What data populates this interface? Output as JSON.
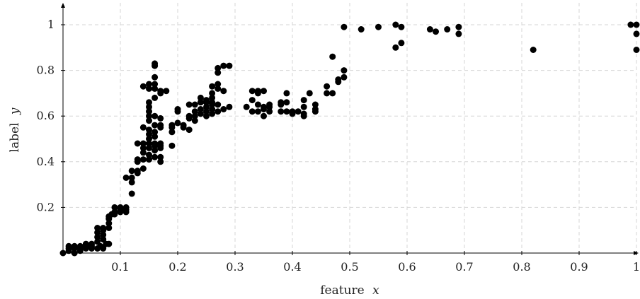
{
  "chart_data": {
    "type": "scatter",
    "title": "",
    "xlabel": "feature",
    "xlabel_var": "x",
    "ylabel": "label",
    "ylabel_var": "y",
    "xlim": [
      0,
      1
    ],
    "ylim": [
      0,
      1.08
    ],
    "grid": true,
    "xticks": [
      0.1,
      0.2,
      0.3,
      0.4,
      0.5,
      0.6,
      0.7,
      0.8,
      0.9,
      1
    ],
    "xtick_labels": [
      "0.1",
      "0.2",
      "0.3",
      "0.4",
      "0.5",
      "0.6",
      "0.7",
      "0.8",
      "0.9",
      "1"
    ],
    "yticks": [
      0.2,
      0.4,
      0.6,
      0.8,
      1
    ],
    "ytick_labels": [
      "0.2",
      "0.4",
      "0.6",
      "0.8",
      "1"
    ],
    "series": [
      {
        "marker_color": "#000000",
        "points": [
          [
            0,
            0
          ],
          [
            0.01,
            0.01
          ],
          [
            0.01,
            0.02
          ],
          [
            0.01,
            0.03
          ],
          [
            0.02,
            0.0
          ],
          [
            0.02,
            0.02
          ],
          [
            0.02,
            0.03
          ],
          [
            0.03,
            0.01
          ],
          [
            0.03,
            0.02
          ],
          [
            0.03,
            0.03
          ],
          [
            0.04,
            0.02
          ],
          [
            0.04,
            0.03
          ],
          [
            0.04,
            0.04
          ],
          [
            0.05,
            0.02
          ],
          [
            0.05,
            0.03
          ],
          [
            0.05,
            0.04
          ],
          [
            0.06,
            0.02
          ],
          [
            0.06,
            0.05
          ],
          [
            0.06,
            0.07
          ],
          [
            0.06,
            0.09
          ],
          [
            0.06,
            0.11
          ],
          [
            0.065,
            0.03
          ],
          [
            0.07,
            0.02
          ],
          [
            0.07,
            0.06
          ],
          [
            0.07,
            0.08
          ],
          [
            0.07,
            0.1
          ],
          [
            0.07,
            0.11
          ],
          [
            0.075,
            0.04
          ],
          [
            0.08,
            0.04
          ],
          [
            0.08,
            0.11
          ],
          [
            0.08,
            0.13
          ],
          [
            0.08,
            0.15
          ],
          [
            0.08,
            0.16
          ],
          [
            0.085,
            0.17
          ],
          [
            0.09,
            0.17
          ],
          [
            0.09,
            0.18
          ],
          [
            0.09,
            0.2
          ],
          [
            0.1,
            0.18
          ],
          [
            0.1,
            0.19
          ],
          [
            0.1,
            0.2
          ],
          [
            0.11,
            0.18
          ],
          [
            0.11,
            0.19
          ],
          [
            0.11,
            0.2
          ],
          [
            0.11,
            0.33
          ],
          [
            0.12,
            0.26
          ],
          [
            0.12,
            0.31
          ],
          [
            0.12,
            0.33
          ],
          [
            0.12,
            0.36
          ],
          [
            0.13,
            0.35
          ],
          [
            0.13,
            0.36
          ],
          [
            0.13,
            0.4
          ],
          [
            0.13,
            0.41
          ],
          [
            0.13,
            0.48
          ],
          [
            0.14,
            0.37
          ],
          [
            0.14,
            0.41
          ],
          [
            0.14,
            0.44
          ],
          [
            0.14,
            0.46
          ],
          [
            0.14,
            0.48
          ],
          [
            0.14,
            0.55
          ],
          [
            0.14,
            0.73
          ],
          [
            0.15,
            0.41
          ],
          [
            0.15,
            0.43
          ],
          [
            0.15,
            0.46
          ],
          [
            0.15,
            0.48
          ],
          [
            0.15,
            0.5
          ],
          [
            0.15,
            0.52
          ],
          [
            0.15,
            0.54
          ],
          [
            0.15,
            0.58
          ],
          [
            0.15,
            0.6
          ],
          [
            0.15,
            0.62
          ],
          [
            0.15,
            0.64
          ],
          [
            0.15,
            0.66
          ],
          [
            0.15,
            0.72
          ],
          [
            0.15,
            0.74
          ],
          [
            0.16,
            0.42
          ],
          [
            0.16,
            0.45
          ],
          [
            0.16,
            0.47
          ],
          [
            0.16,
            0.48
          ],
          [
            0.16,
            0.51
          ],
          [
            0.16,
            0.53
          ],
          [
            0.16,
            0.56
          ],
          [
            0.16,
            0.6
          ],
          [
            0.16,
            0.68
          ],
          [
            0.16,
            0.72
          ],
          [
            0.16,
            0.74
          ],
          [
            0.16,
            0.77
          ],
          [
            0.16,
            0.82
          ],
          [
            0.16,
            0.83
          ],
          [
            0.17,
            0.4
          ],
          [
            0.17,
            0.42
          ],
          [
            0.17,
            0.46
          ],
          [
            0.17,
            0.47
          ],
          [
            0.17,
            0.48
          ],
          [
            0.17,
            0.55
          ],
          [
            0.17,
            0.56
          ],
          [
            0.17,
            0.59
          ],
          [
            0.17,
            0.7
          ],
          [
            0.17,
            0.71
          ],
          [
            0.18,
            0.71
          ],
          [
            0.19,
            0.47
          ],
          [
            0.19,
            0.53
          ],
          [
            0.19,
            0.55
          ],
          [
            0.19,
            0.56
          ],
          [
            0.2,
            0.57
          ],
          [
            0.2,
            0.62
          ],
          [
            0.2,
            0.63
          ],
          [
            0.21,
            0.55
          ],
          [
            0.21,
            0.56
          ],
          [
            0.22,
            0.54
          ],
          [
            0.22,
            0.59
          ],
          [
            0.22,
            0.6
          ],
          [
            0.22,
            0.65
          ],
          [
            0.23,
            0.58
          ],
          [
            0.23,
            0.6
          ],
          [
            0.23,
            0.62
          ],
          [
            0.23,
            0.65
          ],
          [
            0.24,
            0.61
          ],
          [
            0.24,
            0.63
          ],
          [
            0.24,
            0.66
          ],
          [
            0.24,
            0.68
          ],
          [
            0.25,
            0.6
          ],
          [
            0.25,
            0.62
          ],
          [
            0.25,
            0.64
          ],
          [
            0.25,
            0.66
          ],
          [
            0.25,
            0.67
          ],
          [
            0.26,
            0.61
          ],
          [
            0.26,
            0.63
          ],
          [
            0.26,
            0.65
          ],
          [
            0.26,
            0.66
          ],
          [
            0.26,
            0.68
          ],
          [
            0.26,
            0.7
          ],
          [
            0.26,
            0.73
          ],
          [
            0.27,
            0.62
          ],
          [
            0.27,
            0.65
          ],
          [
            0.27,
            0.72
          ],
          [
            0.27,
            0.74
          ],
          [
            0.27,
            0.79
          ],
          [
            0.27,
            0.81
          ],
          [
            0.28,
            0.63
          ],
          [
            0.28,
            0.71
          ],
          [
            0.28,
            0.82
          ],
          [
            0.29,
            0.64
          ],
          [
            0.29,
            0.82
          ],
          [
            0.32,
            0.64
          ],
          [
            0.33,
            0.62
          ],
          [
            0.33,
            0.67
          ],
          [
            0.33,
            0.71
          ],
          [
            0.34,
            0.62
          ],
          [
            0.34,
            0.65
          ],
          [
            0.34,
            0.7
          ],
          [
            0.34,
            0.71
          ],
          [
            0.35,
            0.6
          ],
          [
            0.35,
            0.63
          ],
          [
            0.35,
            0.64
          ],
          [
            0.35,
            0.71
          ],
          [
            0.36,
            0.62
          ],
          [
            0.36,
            0.64
          ],
          [
            0.36,
            0.65
          ],
          [
            0.38,
            0.62
          ],
          [
            0.38,
            0.65
          ],
          [
            0.38,
            0.66
          ],
          [
            0.39,
            0.62
          ],
          [
            0.39,
            0.66
          ],
          [
            0.39,
            0.7
          ],
          [
            0.4,
            0.61
          ],
          [
            0.4,
            0.62
          ],
          [
            0.41,
            0.62
          ],
          [
            0.42,
            0.6
          ],
          [
            0.42,
            0.61
          ],
          [
            0.42,
            0.64
          ],
          [
            0.42,
            0.67
          ],
          [
            0.43,
            0.7
          ],
          [
            0.44,
            0.62
          ],
          [
            0.44,
            0.63
          ],
          [
            0.44,
            0.65
          ],
          [
            0.46,
            0.7
          ],
          [
            0.46,
            0.73
          ],
          [
            0.47,
            0.7
          ],
          [
            0.47,
            0.86
          ],
          [
            0.48,
            0.75
          ],
          [
            0.48,
            0.76
          ],
          [
            0.49,
            0.77
          ],
          [
            0.49,
            0.8
          ],
          [
            0.49,
            0.99
          ],
          [
            0.52,
            0.98
          ],
          [
            0.55,
            0.99
          ],
          [
            0.58,
            0.9
          ],
          [
            0.58,
            1.0
          ],
          [
            0.59,
            0.92
          ],
          [
            0.59,
            0.99
          ],
          [
            0.64,
            0.98
          ],
          [
            0.65,
            0.97
          ],
          [
            0.67,
            0.98
          ],
          [
            0.69,
            0.96
          ],
          [
            0.69,
            0.99
          ],
          [
            0.82,
            0.89
          ],
          [
            0.99,
            1.0
          ],
          [
            1.0,
            0.89
          ],
          [
            1.0,
            0.96
          ],
          [
            1.0,
            1.0
          ]
        ]
      }
    ]
  }
}
